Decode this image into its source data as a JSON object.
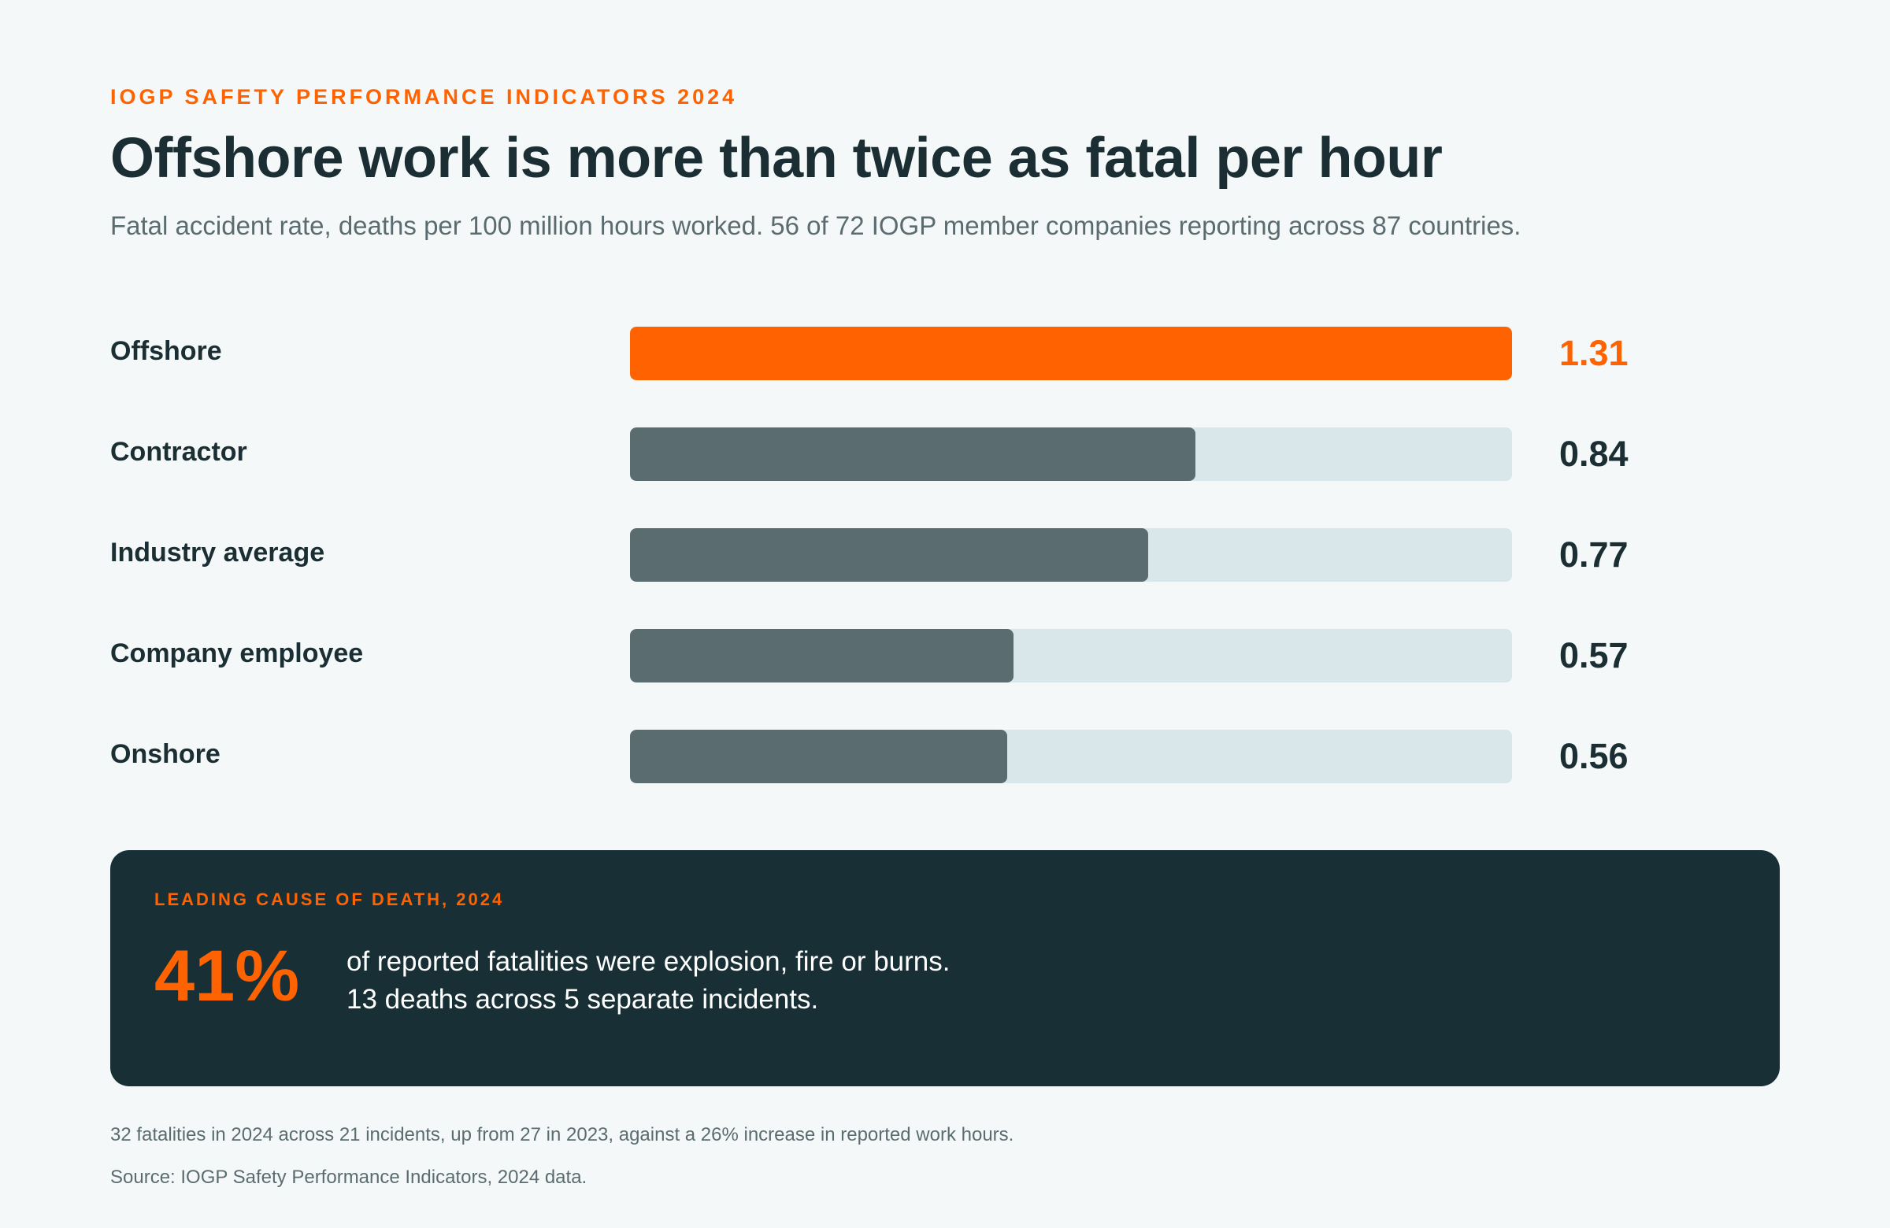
{
  "header": {
    "eyebrow": "IOGP SAFETY PERFORMANCE INDICATORS 2024",
    "title": "Offshore work is more than twice as fatal per hour",
    "subtitle": "Fatal accident rate, deaths per 100 million hours worked. 56 of 72 IOGP member companies reporting across 87 countries."
  },
  "chart_data": {
    "type": "bar",
    "orientation": "horizontal",
    "categories": [
      "Offshore",
      "Contractor",
      "Industry average",
      "Company employee",
      "Onshore"
    ],
    "values": [
      1.31,
      0.84,
      0.77,
      0.57,
      0.56
    ],
    "value_labels": [
      "1.31",
      "0.84",
      "0.77",
      "0.57",
      "0.56"
    ],
    "xlim": [
      0,
      1.31
    ],
    "highlight_index": 0,
    "colors": {
      "highlight": "#ff6200",
      "default": "#5b6c70",
      "track": "#dae7ea",
      "highlight_label": "#ff6200",
      "default_label": "#1a2e33"
    }
  },
  "callout": {
    "eyebrow": "LEADING CAUSE OF DEATH, 2024",
    "big_value": "41%",
    "line1": "of reported fatalities were explosion, fire or burns.",
    "line2": "13 deaths across 5 separate incidents."
  },
  "footer": {
    "note": "32 fatalities in 2024 across 21 incidents, up from 27 in 2023, against a 26% increase in reported work hours.",
    "source": "Source: IOGP Safety Performance Indicators, 2024 data."
  }
}
